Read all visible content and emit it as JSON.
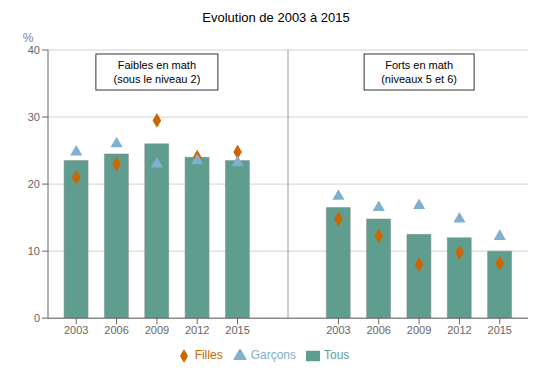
{
  "chart_data": {
    "type": "bar",
    "title": "Evolution de 2003 à 2015",
    "y_label": "%",
    "annotations": [
      "Faibles en math\n(sous le niveau 2)",
      "Forts en math\n(niveaux 5 et 6)"
    ],
    "categories": [
      "2003",
      "2006",
      "2009",
      "2012",
      "2015",
      "2003",
      "2006",
      "2009",
      "2012",
      "2015"
    ],
    "series": [
      {
        "name": "Tous",
        "type": "bar",
        "color": "#5f9e8f",
        "values": [
          23.5,
          24.5,
          26.0,
          24.0,
          23.5,
          16.5,
          14.8,
          12.5,
          12.0,
          10.0
        ]
      },
      {
        "name": "Filles",
        "type": "scatter",
        "marker": "diamond",
        "color": "#cc6600",
        "values": [
          21.0,
          23.0,
          29.5,
          24.0,
          24.8,
          14.8,
          12.3,
          8.0,
          9.8,
          8.2
        ]
      },
      {
        "name": "Garçons",
        "type": "scatter",
        "marker": "triangle",
        "color": "#7fb0d0",
        "values": [
          24.8,
          26.0,
          23.0,
          23.5,
          23.2,
          18.2,
          16.5,
          16.8,
          14.8,
          12.2
        ]
      }
    ],
    "ylim": [
      0,
      40
    ],
    "yticks": [
      0,
      10,
      20,
      30,
      40
    ],
    "grid": true,
    "legend": "bottom"
  }
}
